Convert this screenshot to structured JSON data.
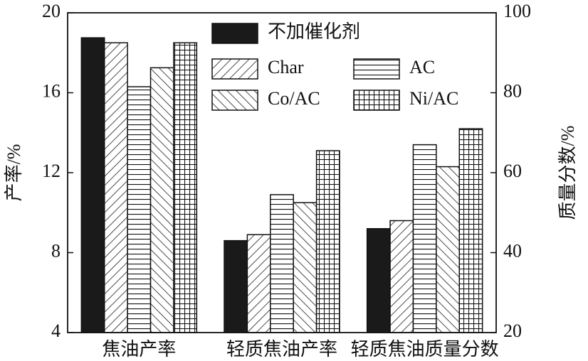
{
  "chart_data": {
    "type": "bar",
    "y_label": "产率/%",
    "y2_label": "质量分数/%",
    "categories": [
      "焦油产率",
      "轻质焦油产率",
      "轻质焦油质量分数"
    ],
    "category_axis": [
      "y",
      "y",
      "y2"
    ],
    "series": [
      {
        "name": "不加催化剂",
        "color": "#1a1a1a",
        "hatch": "solid",
        "values": [
          18.75,
          8.6,
          46
        ]
      },
      {
        "name": "Char",
        "color": "#1a1a1a",
        "hatch": "/",
        "values": [
          18.5,
          8.9,
          48
        ]
      },
      {
        "name": "AC",
        "color": "#1a1a1a",
        "hatch": "-",
        "values": [
          16.3,
          10.9,
          67
        ]
      },
      {
        "name": "Co/AC",
        "color": "#1a1a1a",
        "hatch": "\\",
        "values": [
          17.25,
          10.5,
          61.5
        ]
      },
      {
        "name": "Ni/AC",
        "color": "#1a1a1a",
        "hatch": "+",
        "values": [
          18.5,
          13.1,
          71
        ]
      }
    ],
    "ylim": [
      4,
      20
    ],
    "yticks": [
      4,
      8,
      12,
      16,
      20
    ],
    "y2lim": [
      20,
      100
    ],
    "y2ticks": [
      20,
      40,
      60,
      80,
      100
    ],
    "grid": false
  }
}
